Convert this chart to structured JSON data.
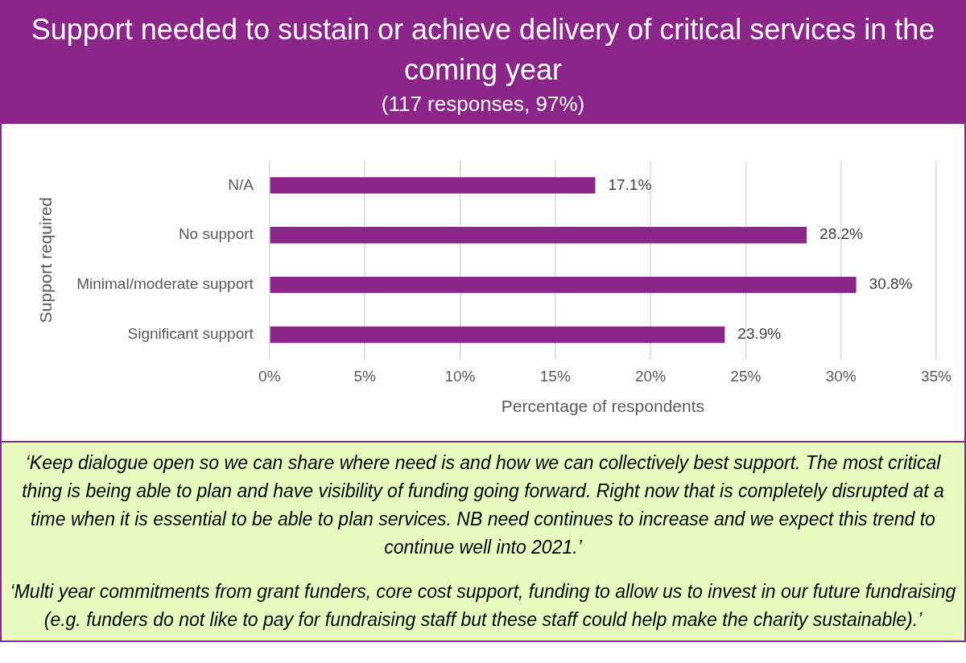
{
  "chart_data": {
    "type": "bar",
    "orientation": "horizontal",
    "title": "Support needed to sustain or achieve delivery of critical services in the coming year",
    "subtitle": "(117 responses, 97%)",
    "ylabel": "Support required",
    "xlabel": "Percentage of respondents",
    "categories": [
      "N/A",
      "No support",
      "Minimal/moderate support",
      "Significant support"
    ],
    "values": [
      17.1,
      28.2,
      30.8,
      23.9
    ],
    "color": "#8b2589",
    "value_labels": [
      "17.1%",
      "28.2%",
      "30.8%",
      "23.9%"
    ],
    "xlim": [
      0,
      35
    ],
    "xticks": [
      {
        "value": 0,
        "label": "0%"
      },
      {
        "value": 5,
        "label": "5%"
      },
      {
        "value": 10,
        "label": "10%"
      },
      {
        "value": 15,
        "label": "15%"
      },
      {
        "value": 20,
        "label": "20%"
      },
      {
        "value": 25,
        "label": "25%"
      },
      {
        "value": 30,
        "label": "30%"
      },
      {
        "value": 35,
        "label": "35%"
      }
    ],
    "grid": "x",
    "legend": false,
    "annotations": [
      "‘Keep dialogue open so we can share where need is and how we can collectively best support. The most critical thing is being able to plan and have visibility of funding going forward. Right now that is completely disrupted at a time when it is essential to be able to plan services. NB need continues to increase and we expect this trend to continue well into 2021.’",
      "‘Multi year commitments from grant funders, core cost support, funding to allow us to invest in our future fundraising (e.g. funders do not like to pay for fundraising staff but these staff could help make the charity sustainable).’"
    ]
  }
}
